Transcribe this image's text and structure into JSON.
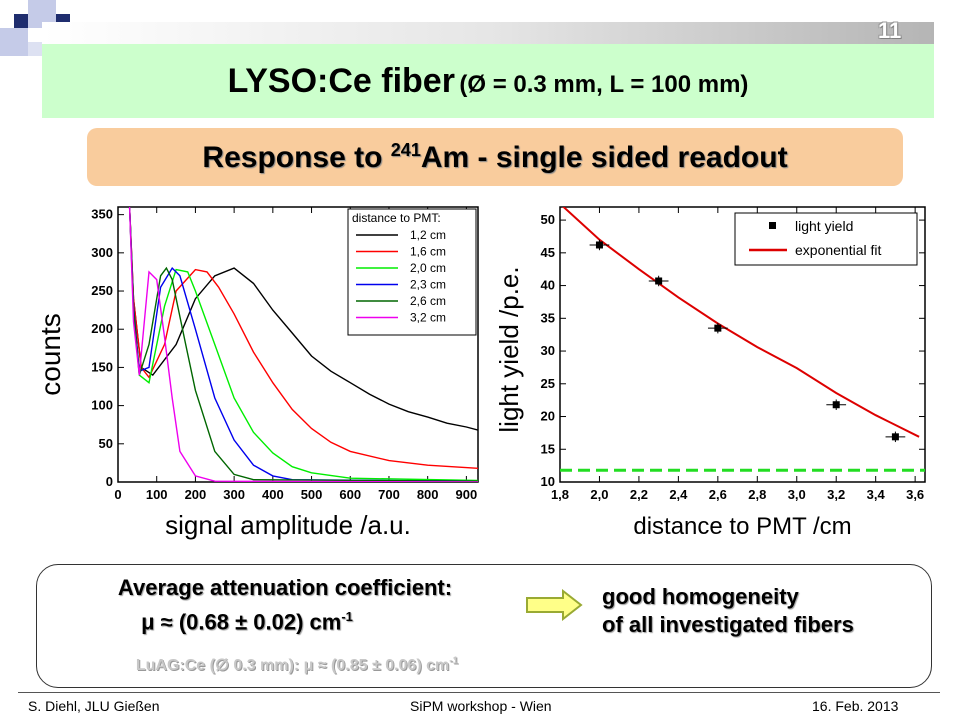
{
  "slide": {
    "page_number": "11",
    "title_main": "LYSO:Ce fiber",
    "title_sub": "(Ø = 0.3 mm, L = 100 mm)",
    "subtitle_pre": "Response to ",
    "subtitle_sup": "241",
    "subtitle_post": "Am  -  single sided readout",
    "colors": {
      "title_band": "#ccffcc",
      "subtitle_box": "#f9cc9d",
      "arrow_fill": "#ffff88",
      "arrow_stroke": "#99aa33"
    }
  },
  "summary": {
    "attenuation_title": "Average attenuation coefficient:",
    "attenuation_value": "μ ≈ (0.68 ± 0.02) cm",
    "attenuation_exp": "-1",
    "luag_text": "LuAG:Ce (∅ 0.3 mm): μ ≈ (0.85 ± 0.06) cm",
    "luag_exp": "-1",
    "conclusion_line1": "good homogeneity",
    "conclusion_line2": "of all investigated fibers",
    "arrow_icon": "right-arrow-icon"
  },
  "footer": {
    "left": "S. Diehl, JLU Gießen",
    "center": "SiPM workshop - Wien",
    "right": "16.  Feb. 2013"
  },
  "chart_data": [
    {
      "type": "line",
      "xlabel": "signal amplitude /a.u.",
      "ylabel": "counts",
      "xlim": [
        0,
        930
      ],
      "ylim": [
        0,
        360
      ],
      "xticks": [
        0,
        100,
        200,
        300,
        400,
        500,
        600,
        700,
        800,
        900
      ],
      "yticks": [
        0,
        50,
        100,
        150,
        200,
        250,
        300,
        350
      ],
      "grid": false,
      "legend_title": "distance to PMT:",
      "legend_position": "top-right",
      "series": [
        {
          "name": "1,2 cm",
          "color": "#000000",
          "x": [
            30,
            40,
            60,
            90,
            150,
            200,
            250,
            300,
            350,
            400,
            450,
            500,
            550,
            600,
            650,
            700,
            750,
            800,
            850,
            900,
            930
          ],
          "y": [
            360,
            240,
            150,
            140,
            180,
            240,
            270,
            280,
            260,
            225,
            195,
            165,
            145,
            130,
            115,
            102,
            92,
            85,
            77,
            72,
            68
          ]
        },
        {
          "name": "1,6 cm",
          "color": "#ff0000",
          "x": [
            30,
            40,
            60,
            80,
            120,
            150,
            200,
            230,
            260,
            300,
            350,
            400,
            450,
            500,
            550,
            600,
            700,
            800,
            930
          ],
          "y": [
            360,
            240,
            150,
            137,
            180,
            250,
            278,
            275,
            255,
            220,
            170,
            130,
            95,
            70,
            52,
            40,
            28,
            22,
            18
          ]
        },
        {
          "name": "2,0 cm",
          "color": "#00ee00",
          "x": [
            30,
            40,
            55,
            80,
            120,
            150,
            180,
            200,
            250,
            300,
            350,
            400,
            450,
            500,
            600,
            930
          ],
          "y": [
            360,
            230,
            140,
            130,
            230,
            278,
            275,
            250,
            180,
            110,
            65,
            38,
            20,
            12,
            5,
            2
          ]
        },
        {
          "name": "2,3 cm",
          "color": "#0000ee",
          "x": [
            30,
            40,
            55,
            80,
            110,
            140,
            160,
            200,
            250,
            300,
            350,
            400,
            450,
            930
          ],
          "y": [
            360,
            230,
            145,
            150,
            255,
            280,
            270,
            200,
            110,
            55,
            22,
            8,
            3,
            1
          ]
        },
        {
          "name": "2,6 cm",
          "color": "#006600",
          "x": [
            30,
            40,
            55,
            80,
            110,
            125,
            140,
            175,
            200,
            250,
            300,
            350,
            930
          ],
          "y": [
            360,
            225,
            140,
            180,
            270,
            280,
            265,
            180,
            120,
            40,
            10,
            3,
            1
          ]
        },
        {
          "name": "3,2 cm",
          "color": "#ee00ee",
          "x": [
            30,
            40,
            55,
            80,
            100,
            120,
            140,
            160,
            200,
            250,
            930
          ],
          "y": [
            360,
            210,
            140,
            275,
            265,
            190,
            110,
            40,
            8,
            1,
            0
          ]
        }
      ]
    },
    {
      "type": "scatter",
      "xlabel": "distance to PMT /cm",
      "ylabel": "light yield /p.e.",
      "xlim": [
        1.8,
        3.65
      ],
      "ylim": [
        10,
        52
      ],
      "xticks": [
        1.8,
        2.0,
        2.2,
        2.4,
        2.6,
        2.8,
        3.0,
        3.2,
        3.4,
        3.6
      ],
      "xtick_labels": [
        "1,8",
        "2,0",
        "2,2",
        "2,4",
        "2,6",
        "2,8",
        "3,0",
        "3,2",
        "3,4",
        "3,6"
      ],
      "yticks": [
        10,
        15,
        20,
        25,
        30,
        35,
        40,
        45,
        50
      ],
      "grid": false,
      "legend_position": "top-right",
      "series": [
        {
          "name": "light yield",
          "color": "#000000",
          "x": [
            2.0,
            2.3,
            2.6,
            3.2,
            3.5
          ],
          "y": [
            46.2,
            40.7,
            33.5,
            21.8,
            16.9
          ],
          "xerr": 0.05,
          "yerr": 0.8
        },
        {
          "name": "exponential fit",
          "color": "#dd0000",
          "x": [
            1.8,
            2.0,
            2.2,
            2.4,
            2.6,
            2.8,
            3.0,
            3.2,
            3.4,
            3.62
          ],
          "y": [
            52.5,
            47.0,
            42.5,
            38.2,
            34.2,
            30.6,
            27.4,
            23.6,
            20.2,
            16.9
          ]
        },
        {
          "name": "",
          "color": "#22dd22",
          "dashed": true,
          "x": [
            1.8,
            3.65
          ],
          "y": [
            11.8,
            11.8
          ]
        }
      ]
    }
  ]
}
